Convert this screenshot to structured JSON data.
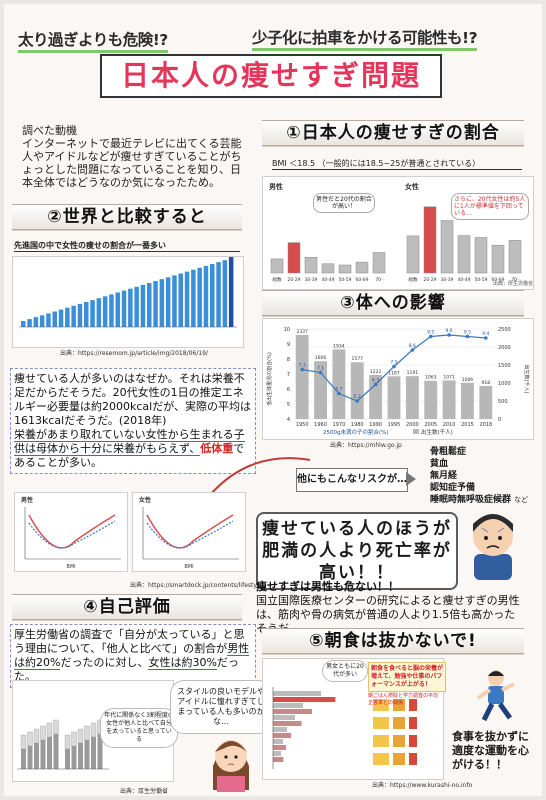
{
  "header": {
    "subtitle_left": "太り過ぎよりも危険!?",
    "subtitle_right": "少子化に拍車をかける可能性も!?",
    "title": "日本人の痩せすぎ問題"
  },
  "motivation": {
    "label": "調べた動機",
    "text": "インターネットで最近テレビに出てくる芸能人やアイドルなどが痩せすぎていることがちょっとした問題になっていることを知り、日本全体ではどうなのか気になったため。"
  },
  "section1": {
    "heading": "①日本人の痩せすぎの割合",
    "bmi_note": "BMI ＜18.5 （一般的には18.5~25が普通とされている）",
    "male_label": "男性",
    "female_label": "女性",
    "male_bubble": "男性だと20代の割合が高い！",
    "female_bubble": "さらに、20代女性は約5人に1人が標準値を下回っている…",
    "age_labels": [
      "総数",
      "20-29",
      "30-39",
      "40-49",
      "50-59",
      "60-69",
      "70-"
    ],
    "male_values": [
      4.4,
      9.5,
      4.9,
      2.9,
      2.5,
      3.4,
      6.4
    ],
    "female_values": [
      11.6,
      20.7,
      16.4,
      11.7,
      11.1,
      8.7,
      10.2
    ],
    "source": "出典：厚生労働省"
  },
  "section2": {
    "heading": "②世界と比較すると",
    "subheading": "先進国の中で女性の痩せの割合が一番多い",
    "source": "出典：https://resemom.jp/article/img/2018/06/19/"
  },
  "section3": {
    "heading": "③体への影響",
    "ylabel_left": "低出生体重児の割合(%)",
    "ylabel_right": "出生数(千人)",
    "years": [
      "1950",
      "1960",
      "1970",
      "1980",
      "1990",
      "1995",
      "2000",
      "2005",
      "2010",
      "2015",
      "2018"
    ],
    "births": [
      2337,
      1606,
      1934,
      1577,
      1222,
      1187,
      1191,
      1063,
      1071,
      1006,
      918
    ],
    "low_weight_pct": [
      7.3,
      7.1,
      5.7,
      5.2,
      6.3,
      7.5,
      8.6,
      9.5,
      9.6,
      9.5,
      9.4
    ],
    "legend_line": "2500g未満の子の割合(%)",
    "legend_bar": "出生数(千人)",
    "source": "出典：https://mhlw.go.jp"
  },
  "reason": {
    "line1": "痩せている人が多いのはなぜか。それは栄養不足だからだそうだ。20代女性の1日の推定エネルギー必要量は約2000kcalだが、実際の平均は1613kcalだそうだ。(2018年)",
    "line2a": "栄養があまり取れていない女性から生まれる子供は母体から十分に栄養がもらえず、",
    "line2b": "低体重",
    "line2c": "であることが多い。"
  },
  "risk": {
    "question": "他にもこんなリスクが…",
    "items": [
      "骨粗鬆症",
      "貧血",
      "無月経",
      "認知症予備",
      "睡眠時無呼吸症候群"
    ],
    "etc": "など"
  },
  "mortality": {
    "callout": "痩せている人のほうが肥満の人より死亡率が高い！！",
    "male_note_title": "痩せすぎは男性も危ない！！",
    "male_note": "国立国際医療センターの研究によると痩せすぎの男性は、筋肉や骨の病気が普通の人より1.5倍も高かったそうだ。",
    "chart_a_title": "男性",
    "chart_b_title": "女性",
    "chart_xlabel": "BMI",
    "source": "出典：https://smartdock.jp/contents/lifestyle/lh046/"
  },
  "section4": {
    "heading": "④自己評価",
    "text1": "厚生労働省の調査で「自分が太っている」と思う理由について、「他人と比べて」の割合が",
    "text2": "男性は約20%",
    "text3": "だったのに対し、",
    "text4": "女性は約30%",
    "text5": "だった。",
    "bubble": "スタイルの良いモデルやアイドルに憧れすぎてしまっている人も多いのかな…",
    "chart_note": "年代に関係なく3割程度の女性が他人と比べて自分を太っていると思っている",
    "source": "出典：厚生労働省"
  },
  "section5": {
    "heading": "⑤朝食は抜かないで!",
    "bubble": "男女ともに20代が多い",
    "note": "朝食を食べると脳の栄養が増えて、勉強や仕事のパフォーマンスが上がる！",
    "sub_note": "朝ごはん摂取と学力調査の平均正答率との関係",
    "closing": "食事を抜かずに適度な運動を心がける！！",
    "source": "出典：https://www.kurashi-no.info"
  },
  "colors": {
    "title_red": "#e4365b",
    "underline_green": "#7fc96a",
    "accent_red": "#d62222",
    "blue": "#2f6fd0"
  }
}
